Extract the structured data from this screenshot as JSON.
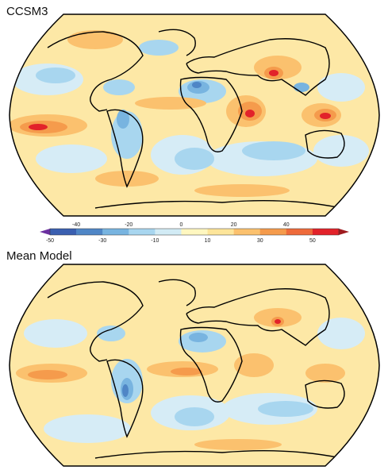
{
  "panels": [
    {
      "title": "CCSM3"
    },
    {
      "title": "Mean Model"
    }
  ],
  "colorbar": {
    "upper_ticks": [
      "-40",
      "-20",
      "0",
      "20",
      "40"
    ],
    "lower_ticks": [
      "-50",
      "-30",
      "-10",
      "10",
      "30",
      "50"
    ],
    "colors": [
      "#6b2fa0",
      "#3a5fb0",
      "#4f86c6",
      "#78b4e0",
      "#a8d6ef",
      "#d2ebf5",
      "#fff7c0",
      "#fde59a",
      "#fbc16e",
      "#f59b4c",
      "#ee6a3a",
      "#e2222a",
      "#9e1b1f"
    ]
  },
  "palette": {
    "background_field": "#fde8a6",
    "ocean_pale": "#d6ecf6",
    "light_blue": "#a8d6ef",
    "mid_blue": "#78b4e0",
    "dark_blue": "#4f86c6",
    "orange": "#fbc16e",
    "dark_orange": "#f59b4c",
    "red": "#e2222a",
    "coast": "#000000"
  }
}
